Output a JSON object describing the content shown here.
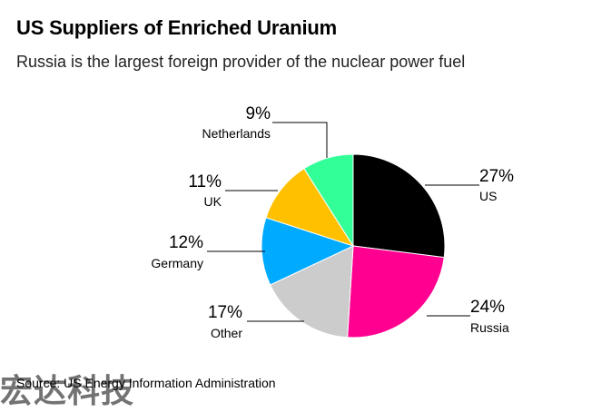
{
  "title": "US Suppliers of Enriched Uranium",
  "subtitle": "Russia is the largest foreign provider of the nuclear power fuel",
  "source": "Source: US Energy Information Administration",
  "watermark": "宏达科技",
  "chart_data": {
    "type": "pie",
    "title": "US Suppliers of Enriched Uranium",
    "subtitle": "Russia is the largest foreign provider of the nuclear power fuel",
    "slices": [
      {
        "label": "US",
        "value": 27,
        "display": "27%",
        "color": "#000000"
      },
      {
        "label": "Russia",
        "value": 24,
        "display": "24%",
        "color": "#ff0090"
      },
      {
        "label": "Other",
        "value": 17,
        "display": "17%",
        "color": "#cccccc"
      },
      {
        "label": "Germany",
        "value": 12,
        "display": "12%",
        "color": "#00aaff"
      },
      {
        "label": "UK",
        "value": 11,
        "display": "11%",
        "color": "#ffc000"
      },
      {
        "label": "Netherlands",
        "value": 9,
        "display": "9%",
        "color": "#33ff99"
      }
    ],
    "start_angle": "12 o'clock",
    "direction": "clockwise"
  }
}
